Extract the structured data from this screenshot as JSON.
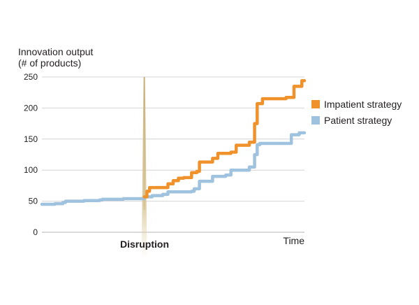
{
  "chart_data": {
    "type": "line",
    "ylabel_line1": "Innovation output",
    "ylabel_line2": "(# of products)",
    "xlabel": "Time",
    "ylim": [
      0,
      250
    ],
    "yticks": [
      0,
      50,
      100,
      150,
      200,
      250
    ],
    "grid": true,
    "legend_position": "right",
    "event_label": "Disruption",
    "event_x": 0.39,
    "series": [
      {
        "name": "Impatient strategy",
        "color": "#f0922b",
        "x": [
          0.39,
          0.4,
          0.41,
          0.47,
          0.48,
          0.5,
          0.52,
          0.54,
          0.57,
          0.59,
          0.6,
          0.64,
          0.65,
          0.67,
          0.71,
          0.72,
          0.74,
          0.76,
          0.79,
          0.8,
          0.81,
          0.82,
          0.84,
          0.92,
          0.93,
          0.96,
          0.99,
          1.0
        ],
        "values": [
          57,
          66,
          72,
          72,
          78,
          83,
          87,
          88,
          96,
          98,
          113,
          113,
          119,
          127,
          127,
          129,
          140,
          140,
          145,
          145,
          175,
          207,
          215,
          215,
          217,
          235,
          244,
          244
        ]
      },
      {
        "name": "Patient strategy",
        "color": "#9fc2de",
        "x": [
          0.0,
          0.05,
          0.08,
          0.09,
          0.15,
          0.16,
          0.22,
          0.23,
          0.3,
          0.31,
          0.39,
          0.42,
          0.46,
          0.48,
          0.57,
          0.58,
          0.6,
          0.65,
          0.7,
          0.72,
          0.79,
          0.81,
          0.82,
          0.83,
          0.94,
          0.95,
          0.98,
          1.0
        ],
        "values": [
          45,
          46,
          48,
          50,
          50,
          51,
          52,
          53,
          53,
          54,
          57,
          59,
          61,
          65,
          66,
          70,
          82,
          90,
          92,
          100,
          105,
          125,
          141,
          143,
          143,
          157,
          160,
          160
        ]
      }
    ]
  }
}
